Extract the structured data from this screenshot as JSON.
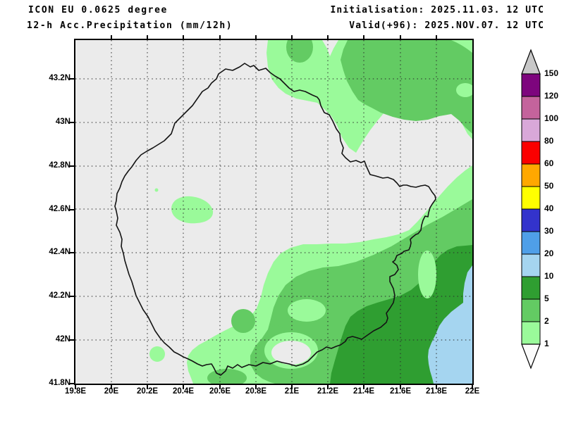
{
  "header": {
    "model_line": "ICON EU 0.0625 degree",
    "product_line": "12-h Acc.Precipitation (mm/12h)",
    "init_line": "Initialisation: 2025.11.03. 12 UTC",
    "valid_line": "Valid(+96): 2025.NOV.07. 12 UTC"
  },
  "map": {
    "lat_labels": [
      "43.2N",
      "43N",
      "42.8N",
      "42.6N",
      "42.4N",
      "42.2N",
      "42N",
      "41.8N"
    ],
    "lon_labels": [
      "19.8E",
      "20E",
      "20.2E",
      "20.4E",
      "20.6E",
      "20.8E",
      "21E",
      "21.2E",
      "21.4E",
      "21.6E",
      "21.8E",
      "22E"
    ],
    "background_color": "#EBEBEB",
    "outline_color": "#141414"
  },
  "colorbar": {
    "tick_labels": [
      "150",
      "120",
      "100",
      "80",
      "60",
      "50",
      "40",
      "30",
      "20",
      "10",
      "5",
      "2",
      "1"
    ],
    "segment_colors_top_to_bottom": [
      "#7D057D",
      "#C4639C",
      "#D9A8D9",
      "#FB0000",
      "#FFA800",
      "#FFFF00",
      "#3333CC",
      "#4F9FE8",
      "#A5D5F0",
      "#2F9E31",
      "#63CB63",
      "#9AFA9A"
    ],
    "over_arrow_color": "#C8C8C8",
    "under_arrow_color": "#FBFBFB"
  },
  "chart_data": {
    "type": "heatmap",
    "title": "12-h Acc.Precipitation (mm/12h)",
    "unit": "mm/12h",
    "levels_mm": [
      1,
      2,
      5,
      10,
      20,
      30,
      40,
      50,
      60,
      80,
      100,
      120,
      150
    ],
    "level_colors": [
      "#9AFA9A",
      "#63CB63",
      "#2F9E31",
      "#A5D5F0",
      "#4F9FE8",
      "#3333CC",
      "#FFFF00",
      "#FFA800",
      "#FB0000",
      "#D9A8D9",
      "#C4639C",
      "#7D057D"
    ],
    "lon_range_deg_e": [
      19.8,
      22.0
    ],
    "lat_range_deg_n": [
      41.8,
      43.38
    ],
    "grid_interval_deg": 0.2,
    "summary": "Light precipitation (1-5 mm) over northeast; broad 2-10 mm area over southeast increasing to 10-20 mm at the far southeast edge; mostly dry (<1 mm) northwest and center"
  }
}
